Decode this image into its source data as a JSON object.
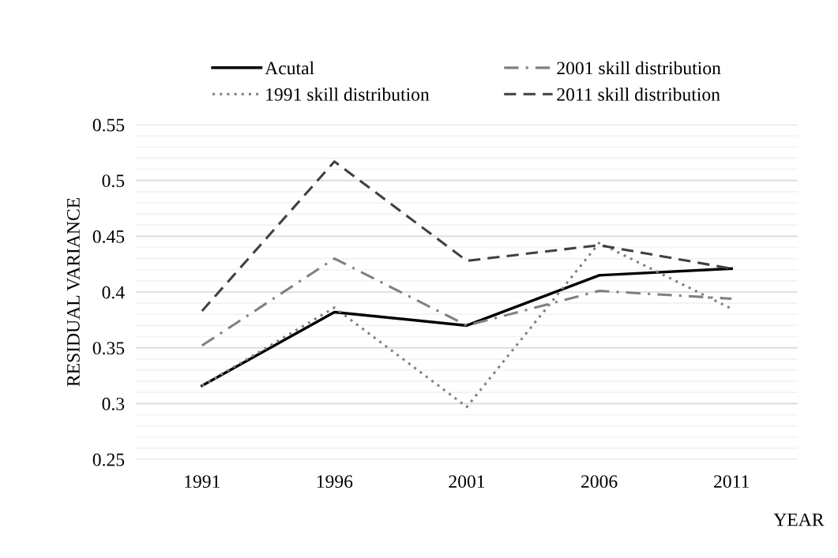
{
  "chart_data": {
    "type": "line",
    "xlabel": "YEAR",
    "ylabel": "RESIDUAL VARIANCE",
    "categories": [
      "1991",
      "1996",
      "2001",
      "2006",
      "2011"
    ],
    "series": [
      {
        "name": "Acutal",
        "color": "#000000",
        "line_style": "solid",
        "values": [
          0.316,
          0.382,
          0.37,
          0.415,
          0.421
        ]
      },
      {
        "name": "1991 skill distribution",
        "color": "#7f7f7f",
        "line_style": "dotted",
        "values": [
          0.316,
          0.386,
          0.297,
          0.444,
          0.385
        ]
      },
      {
        "name": "2001 skill distribution",
        "color": "#808080",
        "line_style": "dashdot",
        "values": [
          0.352,
          0.43,
          0.37,
          0.401,
          0.394
        ]
      },
      {
        "name": "2011 skill distribution",
        "color": "#404040",
        "line_style": "dashed",
        "values": [
          0.383,
          0.517,
          0.428,
          0.442,
          0.421
        ]
      }
    ],
    "ylim": [
      0.25,
      0.55
    ],
    "yticks": [
      0.25,
      {
        "value": 0.26,
        "label": null
      },
      {
        "value": 0.27,
        "label": null
      },
      {
        "value": 0.28,
        "label": null
      },
      {
        "value": 0.29,
        "label": null
      },
      0.3,
      {
        "value": 0.31,
        "label": null
      },
      {
        "value": 0.32,
        "label": null
      },
      {
        "value": 0.33,
        "label": null
      },
      {
        "value": 0.34,
        "label": null
      },
      0.35,
      {
        "value": 0.36,
        "label": null
      },
      {
        "value": 0.37,
        "label": null
      },
      {
        "value": 0.38,
        "label": null
      },
      {
        "value": 0.39,
        "label": null
      },
      0.4,
      {
        "value": 0.41,
        "label": null
      },
      {
        "value": 0.42,
        "label": null
      },
      {
        "value": 0.43,
        "label": null
      },
      {
        "value": 0.44,
        "label": null
      },
      0.45,
      {
        "value": 0.46,
        "label": null
      },
      {
        "value": 0.47,
        "label": null
      },
      {
        "value": 0.48,
        "label": null
      },
      {
        "value": 0.49,
        "label": null
      },
      0.5,
      {
        "value": 0.51,
        "label": null
      },
      {
        "value": 0.52,
        "label": null
      },
      {
        "value": 0.53,
        "label": null
      },
      {
        "value": 0.54,
        "label": null
      },
      0.55
    ],
    "grid": "y",
    "legend": "top",
    "marker": "none"
  }
}
